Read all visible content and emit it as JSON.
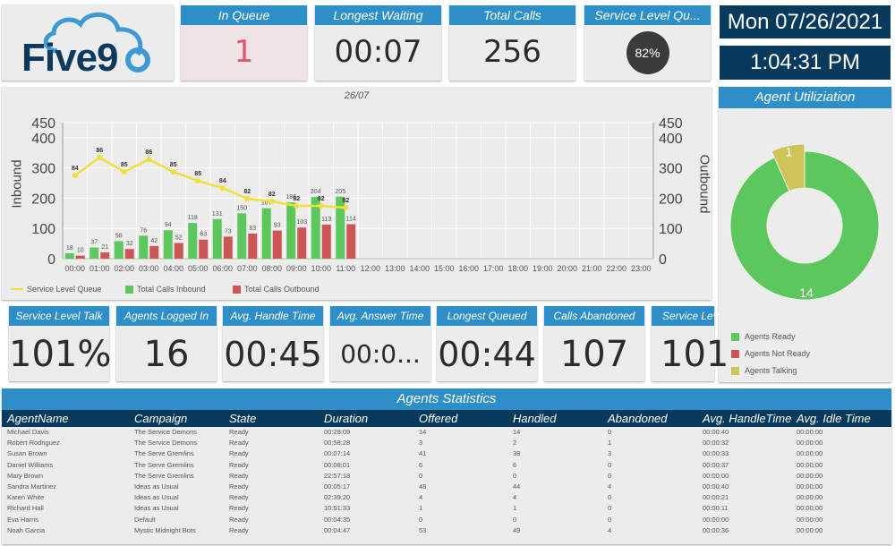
{
  "logo": {
    "text": "Five9"
  },
  "top_tiles": [
    {
      "title": "In Queue",
      "value": "1",
      "color": "#e0546e",
      "bg": "#efe3e5"
    },
    {
      "title": "Longest Waiting",
      "value": "00:07"
    },
    {
      "title": "Total Calls",
      "value": "256"
    },
    {
      "title": "Service Level Qu...",
      "value": "82%"
    }
  ],
  "datetime": {
    "date": "Mon 07/26/2021",
    "time": "1:04:31 PM"
  },
  "chart": {
    "title": "26/07",
    "left_axis_label": "Inbound",
    "right_axis_label": "Outbound"
  },
  "chart_data": {
    "type": "bar",
    "title": "26/07",
    "categories": [
      "00:00",
      "01:00",
      "02:00",
      "03:00",
      "04:00",
      "05:00",
      "06:00",
      "07:00",
      "08:00",
      "09:00",
      "10:00",
      "11:00",
      "12:00",
      "13:00",
      "14:00",
      "15:00",
      "16:00",
      "17:00",
      "18:00",
      "19:00",
      "20:00",
      "21:00",
      "22:00",
      "23:00"
    ],
    "series": [
      {
        "name": "Total Calls Inbound",
        "type": "bar",
        "color": "#5cc75c",
        "values": [
          18,
          37,
          58,
          76,
          94,
          118,
          131,
          150,
          167,
          186,
          204,
          205,
          null,
          null,
          null,
          null,
          null,
          null,
          null,
          null,
          null,
          null,
          null,
          null
        ]
      },
      {
        "name": "Total Calls Outbound",
        "type": "bar",
        "color": "#cc5555",
        "values": [
          10,
          21,
          32,
          42,
          52,
          63,
          73,
          83,
          93,
          103,
          113,
          114,
          null,
          null,
          null,
          null,
          null,
          null,
          null,
          null,
          null,
          null,
          null,
          null
        ]
      },
      {
        "name": "Service Level Queue",
        "type": "line",
        "color": "#f2df3a",
        "values": [
          84,
          86,
          85,
          86,
          85,
          85,
          84,
          82,
          82,
          82,
          82,
          82,
          null,
          null,
          null,
          null,
          null,
          null,
          null,
          null,
          null,
          null,
          null,
          null
        ]
      }
    ],
    "ylabel": "Inbound",
    "y2label": "Outbound",
    "yticks": [
      0,
      100,
      200,
      300,
      400,
      450
    ],
    "ylim": [
      0,
      450
    ],
    "grid": true,
    "legend_position": "bottom-left"
  },
  "utilization": {
    "title": "Agent Utiliziation",
    "slices": [
      {
        "label": "Agents Ready",
        "value": 14,
        "color": "#5cc75c"
      },
      {
        "label": "Agents Not Ready",
        "value": 0,
        "color": "#cc5555"
      },
      {
        "label": "Agents Talking",
        "value": 1,
        "color": "#cfc45a"
      }
    ]
  },
  "bottom_tiles": [
    {
      "title": "Service Level Talk",
      "value": "101%"
    },
    {
      "title": "Agents Logged In",
      "value": "16"
    },
    {
      "title": "Avg. Handle Time",
      "value": "00:45"
    },
    {
      "title": "Avg. Answer Time",
      "value": "00:0..."
    },
    {
      "title": "Longest Queued",
      "value": "00:44"
    },
    {
      "title": "Calls Abandoned",
      "value": "107"
    },
    {
      "title": "Service Lev",
      "value": "101"
    }
  ],
  "agents": {
    "title": "Agents Statistics",
    "columns": [
      "AgentName",
      "Campaign",
      "State",
      "Duration",
      "Offered",
      "Handled",
      "Abandoned",
      "Avg. HandleTime",
      "Avg. Idle Time"
    ],
    "rows": [
      [
        "Michael Davis",
        "The Service Demons",
        "Ready",
        "00:28:09",
        "14",
        "14",
        "0",
        "00:00:40",
        "00:00:00"
      ],
      [
        "Robert Rodriguez",
        "The Service Demons",
        "Ready",
        "00:58:28",
        "3",
        "2",
        "1",
        "00:00:32",
        "00:00:00"
      ],
      [
        "Susan Brown",
        "The Serve Gremlins",
        "Ready",
        "00:07:14",
        "41",
        "38",
        "3",
        "00:00:33",
        "00:00:00"
      ],
      [
        "Daniel Williams",
        "The Serve Gremlins",
        "Ready",
        "00:08:01",
        "6",
        "6",
        "0",
        "00:00:37",
        "00:00:00"
      ],
      [
        "Mary Brown",
        "The Serve Gremlins",
        "Ready",
        "22:57:18",
        "0",
        "0",
        "0",
        "00:00:00",
        "00:00:00"
      ],
      [
        "Sandra Martinez",
        "Ideas as Usual",
        "Ready",
        "00:05:17",
        "48",
        "44",
        "4",
        "00:00:40",
        "00:00:00"
      ],
      [
        "Karen White",
        "Ideas as Usual",
        "Ready",
        "02:39:20",
        "4",
        "4",
        "0",
        "00:00:21",
        "00:00:00"
      ],
      [
        "Richard Hall",
        "Ideas as Usual",
        "Ready",
        "10:51:33",
        "1",
        "1",
        "0",
        "00:00:11",
        "00:00:00"
      ],
      [
        "Eva Harris",
        "Default",
        "Ready",
        "00:04:35",
        "0",
        "0",
        "0",
        "00:00:00",
        "00:00:00"
      ],
      [
        "Noah Garcia",
        "Mystic Midnight Bots",
        "Ready",
        "00:04:47",
        "53",
        "49",
        "4",
        "00:00:36",
        "00:00:00"
      ]
    ]
  }
}
